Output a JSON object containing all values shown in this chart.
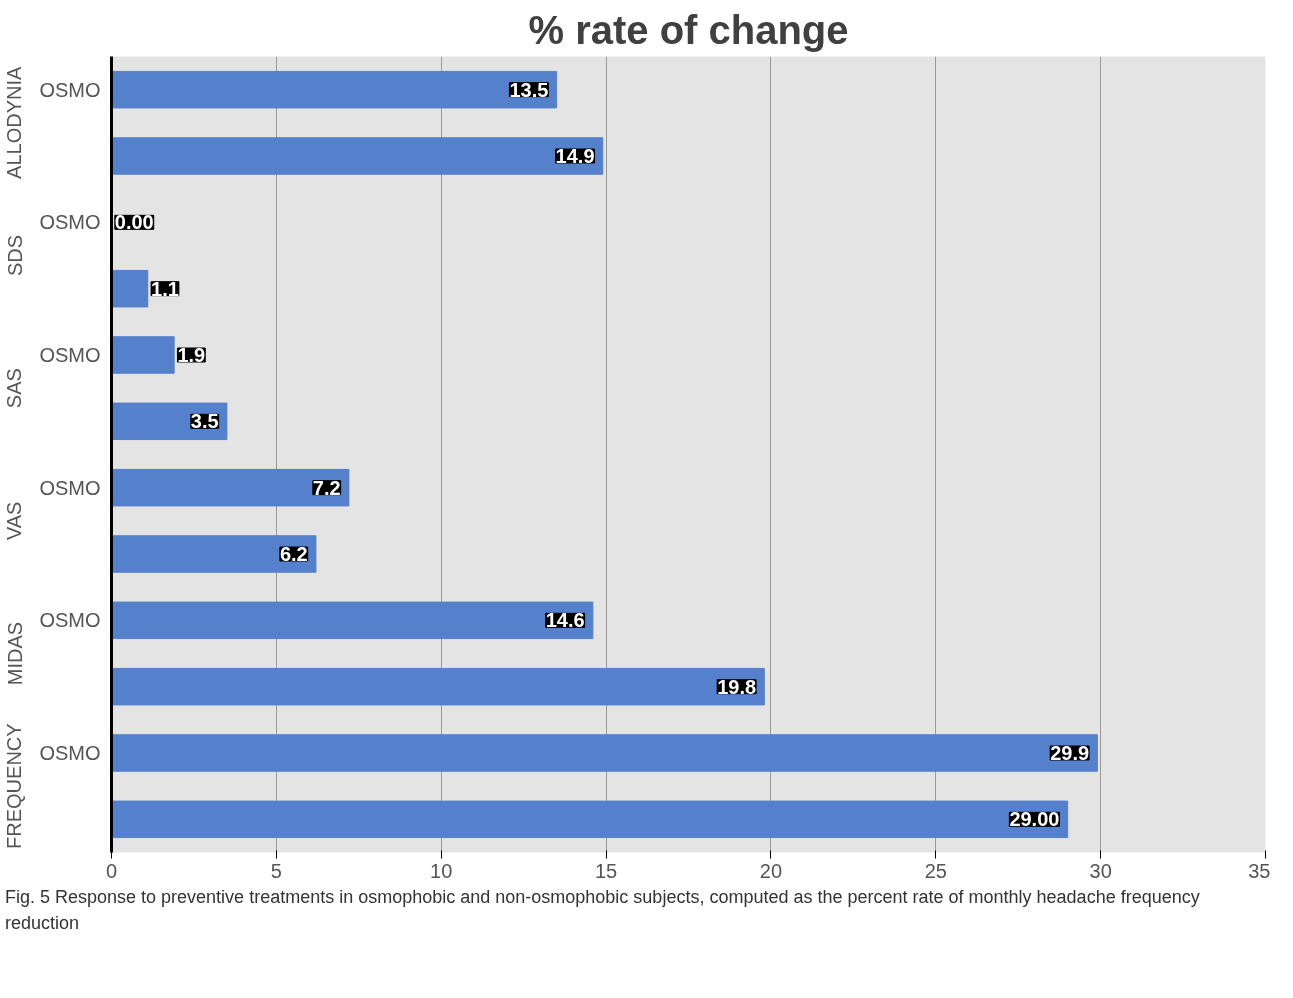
{
  "chart_data": {
    "type": "bar",
    "orientation": "horizontal",
    "title": "% rate of change",
    "categories": [
      "OSMO",
      null,
      "OSMO",
      null,
      "OSMO",
      null,
      "OSMO",
      null,
      "OSMO",
      null,
      "OSMO",
      null
    ],
    "values": [
      13.5,
      14.9,
      0.0,
      1.1,
      1.9,
      3.5,
      7.2,
      6.2,
      14.6,
      19.8,
      29.9,
      29.0
    ],
    "value_labels": [
      "13.5",
      "14.9",
      "0.00",
      "1.1",
      "1.9",
      "3.5",
      "7.2",
      "6.2",
      "14.6",
      "19.8",
      "29.9",
      "29.00"
    ],
    "color": "#5580cc",
    "xlim": [
      0,
      35
    ],
    "xticks": [
      0,
      5,
      10,
      15,
      20,
      25,
      30,
      35
    ],
    "grid": "x",
    "annotations": [
      "ALLODYNIA",
      "SDS",
      "SAS",
      "VAS",
      "MIDAS",
      "FREQUENCY",
      "Fig. 5 Response to preventive treatments in osmophobic and non-osmophobic subjects, computed as the percent rate of monthly headache frequency reduction"
    ]
  }
}
